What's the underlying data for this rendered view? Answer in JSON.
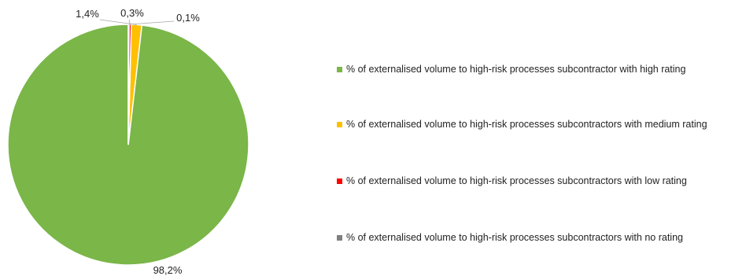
{
  "chart_data": {
    "type": "pie",
    "title": "",
    "categories": [
      "% of externalised volume to high-risk processes subcontractor with high rating",
      "% of externalised volume to high-risk processes subcontractors with medium rating",
      "% of externalised volume to high-risk processes subcontractors with low rating",
      "% of externalised volume to high-risk processes subcontractors with no rating"
    ],
    "values": [
      98.2,
      1.4,
      0.3,
      0.1
    ],
    "data_labels": [
      "98,2%",
      "1,4%",
      "0,3%",
      "0,1%"
    ],
    "colors": [
      "#7ab648",
      "#ffc000",
      "#ff0000",
      "#808080"
    ],
    "legend_position": "right"
  }
}
